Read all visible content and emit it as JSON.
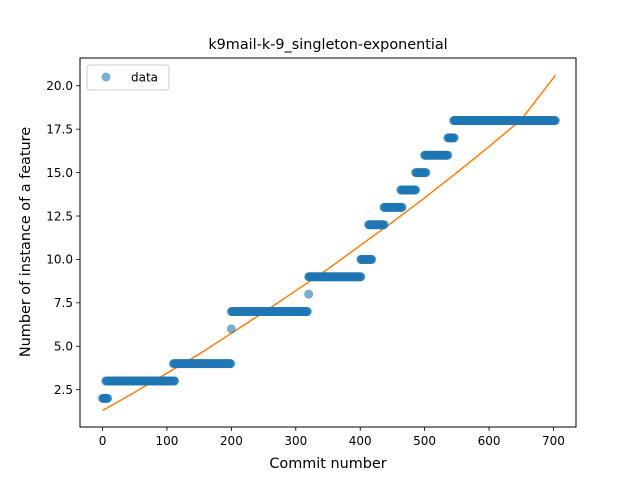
{
  "chart_data": {
    "type": "scatter",
    "title": "k9mail-k-9_singleton-exponential",
    "xlabel": "Commit number",
    "ylabel": "Number of instance of a feature",
    "xlim": [
      -35,
      735
    ],
    "ylim": [
      0.35,
      21.6
    ],
    "x_ticks": [
      0,
      100,
      200,
      300,
      400,
      500,
      600,
      700
    ],
    "y_ticks": [
      2.5,
      5.0,
      7.5,
      10.0,
      12.5,
      15.0,
      17.5,
      20.0
    ],
    "x_tick_labels": [
      "0",
      "100",
      "200",
      "300",
      "400",
      "500",
      "600",
      "700"
    ],
    "y_tick_labels": [
      "2.5",
      "5.0",
      "7.5",
      "10.0",
      "12.5",
      "15.0",
      "17.5",
      "20.0"
    ],
    "legend": {
      "position": "top-left",
      "label": "data"
    },
    "colors": {
      "points": "#1f77b4",
      "fit": "#ff7f0e"
    },
    "series": [
      {
        "name": "data",
        "kind": "points",
        "runs": [
          {
            "x_start": 0,
            "x_end": 8,
            "y": 2
          },
          {
            "x_start": 5,
            "x_end": 112,
            "y": 3
          },
          {
            "x_start": 110,
            "x_end": 199,
            "y": 4
          },
          {
            "x_start": 200,
            "x_end": 200,
            "y": 6
          },
          {
            "x_start": 200,
            "x_end": 318,
            "y": 7
          },
          {
            "x_start": 320,
            "x_end": 320,
            "y": 8
          },
          {
            "x_start": 320,
            "x_end": 401,
            "y": 9
          },
          {
            "x_start": 401,
            "x_end": 418,
            "y": 10
          },
          {
            "x_start": 413,
            "x_end": 437,
            "y": 12
          },
          {
            "x_start": 437,
            "x_end": 465,
            "y": 13
          },
          {
            "x_start": 463,
            "x_end": 486,
            "y": 14
          },
          {
            "x_start": 486,
            "x_end": 502,
            "y": 15
          },
          {
            "x_start": 500,
            "x_end": 536,
            "y": 16
          },
          {
            "x_start": 536,
            "x_end": 546,
            "y": 17
          },
          {
            "x_start": 545,
            "x_end": 703,
            "y": 18
          }
        ]
      },
      {
        "kind": "fit_line",
        "x": [
          0,
          50,
          100,
          150,
          200,
          250,
          300,
          350,
          400,
          450,
          500,
          550,
          600,
          650,
          703
        ],
        "y": [
          1.3,
          2.35,
          3.45,
          4.55,
          5.75,
          6.95,
          8.2,
          9.45,
          10.8,
          12.15,
          13.55,
          15.0,
          16.5,
          18.05,
          20.6
        ]
      }
    ]
  }
}
